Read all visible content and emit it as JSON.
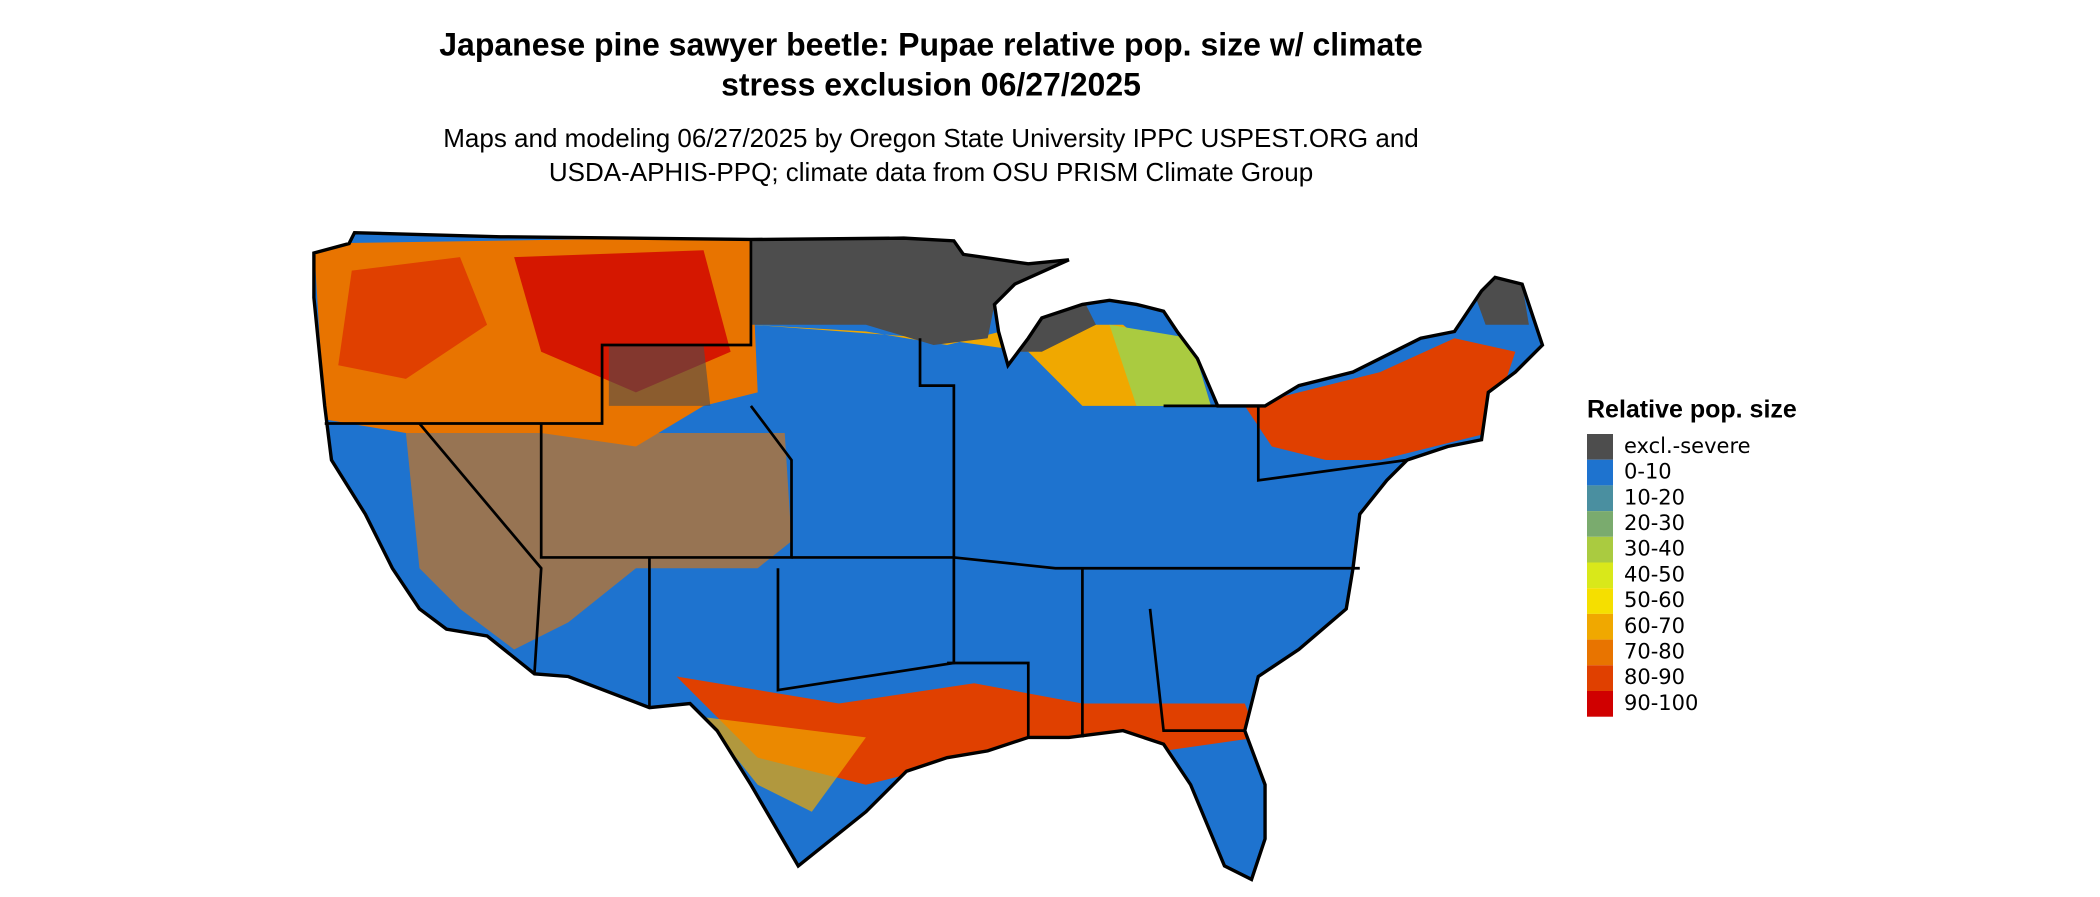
{
  "header": {
    "title_lines": [
      "Japanese pine sawyer beetle: Pupae relative pop. size w/ climate",
      "stress exclusion 06/27/2025"
    ],
    "subtitle_lines": [
      "Maps and modeling 06/27/2025 by Oregon State University IPPC USPEST.ORG and",
      "USDA-APHIS-PPQ; climate data from OSU PRISM Climate Group"
    ]
  },
  "legend": {
    "title": "Relative pop. size",
    "items": [
      {
        "label": "excl.-severe",
        "color": "#4d4d4d"
      },
      {
        "label": "0-10",
        "color": "#1e73cf"
      },
      {
        "label": "10-20",
        "color": "#4a8fa0"
      },
      {
        "label": "20-30",
        "color": "#7aab6e"
      },
      {
        "label": "30-40",
        "color": "#aacb40"
      },
      {
        "label": "40-50",
        "color": "#d9e81a"
      },
      {
        "label": "50-60",
        "color": "#f5df00"
      },
      {
        "label": "60-70",
        "color": "#f0a800"
      },
      {
        "label": "70-80",
        "color": "#e87400"
      },
      {
        "label": "80-90",
        "color": "#e04000"
      },
      {
        "label": "90-100",
        "color": "#d00000"
      }
    ]
  }
}
